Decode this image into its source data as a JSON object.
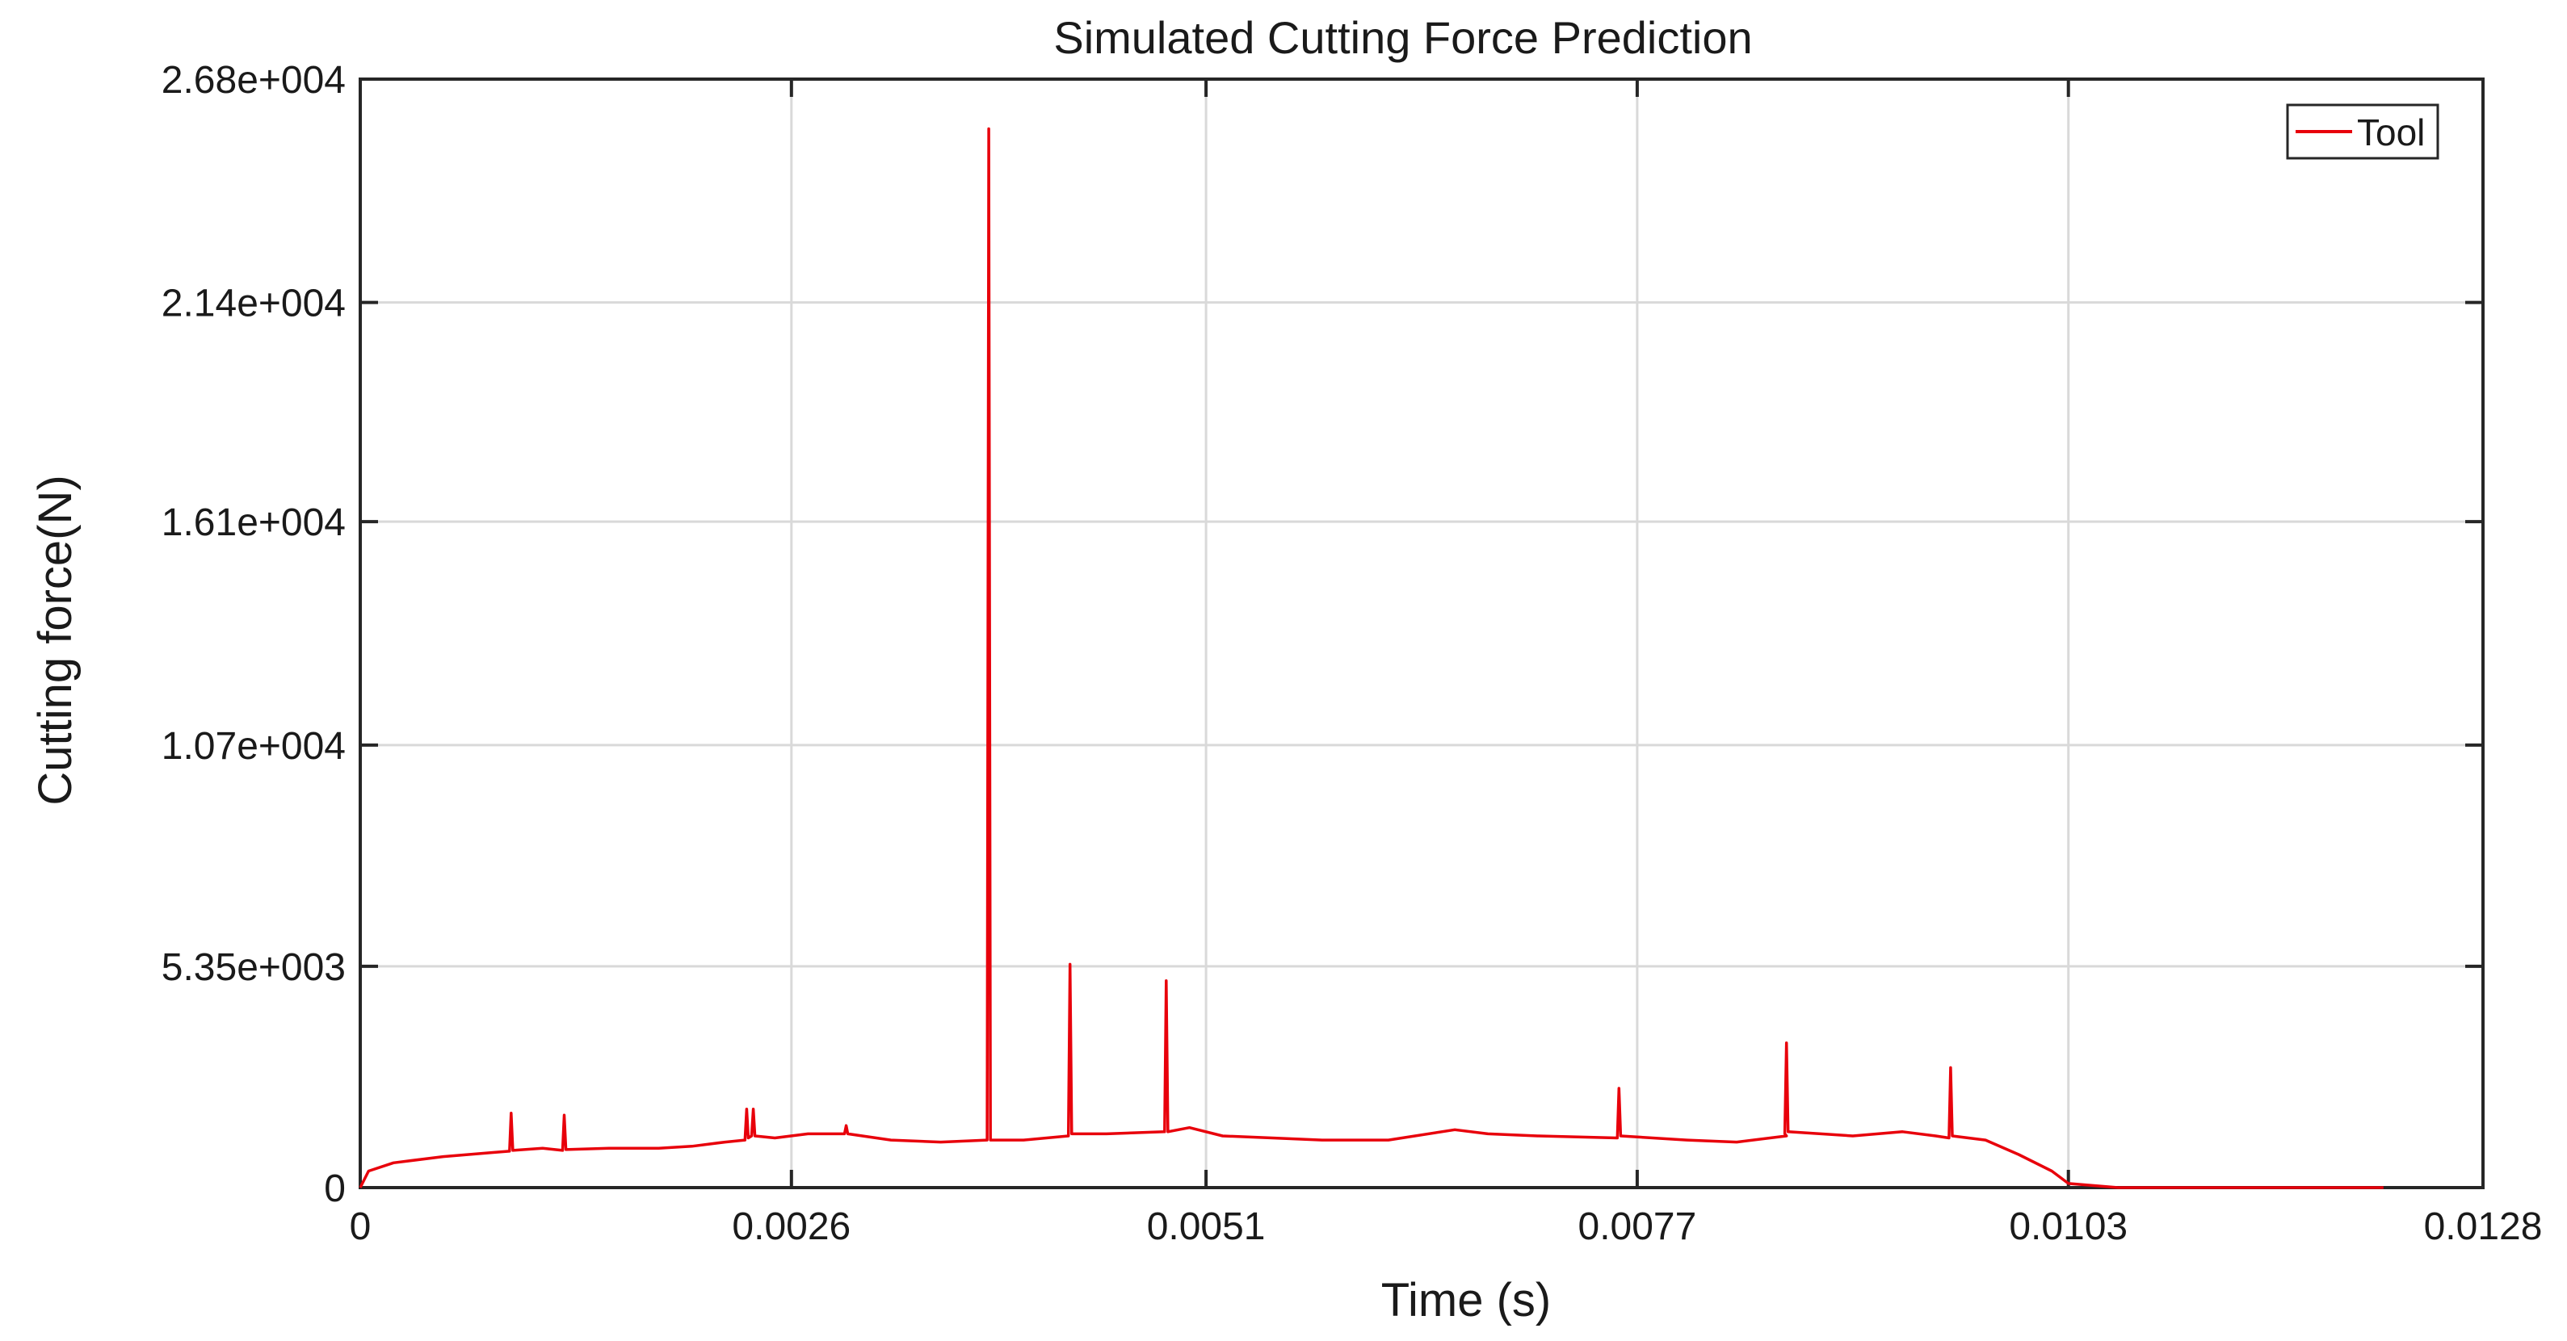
{
  "chart_data": {
    "type": "line",
    "title": "Simulated Cutting Force Prediction",
    "xlabel": "Time (s)",
    "ylabel": "Cutting force(N)",
    "xlim": [
      0,
      0.0128
    ],
    "ylim": [
      0,
      26800
    ],
    "x_ticks": [
      0,
      0.0026,
      0.0051,
      0.0077,
      0.0103,
      0.0128
    ],
    "x_tick_labels": [
      "0",
      "0.0026",
      "0.0051",
      "0.0077",
      "0.0103",
      "0.0128"
    ],
    "y_ticks": [
      0,
      5350,
      10700,
      16100,
      21400,
      26800
    ],
    "y_tick_labels": [
      "0",
      "5.35e+003",
      "1.07e+004",
      "1.61e+004",
      "2.14e+004",
      "2.68e+004"
    ],
    "grid": true,
    "legend_position": "top-right",
    "series": [
      {
        "name": "Tool",
        "color": "#e8000b",
        "x": [
          0,
          5e-05,
          0.0002,
          0.0005,
          0.0008,
          0.0009,
          0.00091,
          0.00092,
          0.0011,
          0.00122,
          0.00123,
          0.00124,
          0.0015,
          0.0018,
          0.002,
          0.0022,
          0.00232,
          0.00233,
          0.00234,
          0.00236,
          0.00237,
          0.00238,
          0.0025,
          0.0027,
          0.00292,
          0.00293,
          0.00294,
          0.0032,
          0.0035,
          0.00378,
          0.00379,
          0.0038,
          0.004,
          0.00427,
          0.00428,
          0.00429,
          0.0045,
          0.00485,
          0.00486,
          0.00487,
          0.005,
          0.0052,
          0.0055,
          0.0058,
          0.0062,
          0.0066,
          0.0068,
          0.0071,
          0.00758,
          0.00759,
          0.0076,
          0.008,
          0.0083,
          0.0086,
          0.00859,
          0.0086,
          0.00861,
          0.009,
          0.0093,
          0.0095,
          0.00958,
          0.00959,
          0.0096,
          0.0098,
          0.01,
          0.0102,
          0.0103,
          0.0106,
          0.011,
          0.0115,
          0.0122
        ],
        "values": [
          0,
          400,
          600,
          750,
          850,
          880,
          1800,
          900,
          950,
          900,
          1750,
          920,
          950,
          950,
          1000,
          1100,
          1150,
          1900,
          1200,
          1250,
          1900,
          1250,
          1200,
          1300,
          1300,
          1500,
          1300,
          1150,
          1100,
          1150,
          25600,
          1150,
          1150,
          1250,
          5400,
          1300,
          1300,
          1350,
          5000,
          1350,
          1450,
          1250,
          1200,
          1150,
          1150,
          1400,
          1300,
          1250,
          1200,
          2400,
          1250,
          1150,
          1100,
          1250,
          1300,
          3500,
          1350,
          1250,
          1350,
          1250,
          1200,
          2900,
          1250,
          1150,
          800,
          400,
          100,
          0,
          0,
          0,
          0
        ]
      }
    ]
  }
}
